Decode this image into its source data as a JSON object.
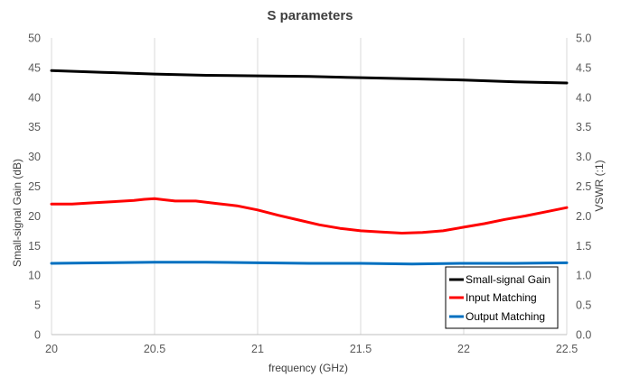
{
  "chart_data": {
    "type": "line",
    "title": "S parameters",
    "xlabel": "frequency  (GHz)",
    "ylabel": "Small-signal Gain (dB)",
    "y2label": "VSWR (:1)",
    "xlim": [
      20,
      22.5
    ],
    "ylim": [
      0,
      50
    ],
    "y2lim": [
      0,
      5
    ],
    "x_ticks": [
      "20",
      "20.5",
      "21",
      "21.5",
      "22",
      "22.5"
    ],
    "y_ticks": [
      "0",
      "5",
      "10",
      "15",
      "20",
      "25",
      "30",
      "35",
      "40",
      "45",
      "50"
    ],
    "y2_ticks": [
      "0.0",
      "0.5",
      "1.0",
      "1.5",
      "2.0",
      "2.5",
      "3.0",
      "3.5",
      "4.0",
      "4.5",
      "5.0"
    ],
    "grid": "vertical",
    "legend_position": "bottom-right",
    "series": [
      {
        "name": "Small-signal Gain",
        "axis": "left",
        "color": "#000000",
        "x": [
          20.0,
          20.25,
          20.5,
          20.75,
          21.0,
          21.25,
          21.5,
          21.75,
          22.0,
          22.25,
          22.5
        ],
        "values": [
          44.5,
          44.2,
          43.9,
          43.7,
          43.6,
          43.5,
          43.3,
          43.1,
          42.9,
          42.6,
          42.4
        ]
      },
      {
        "name": "Input Matching",
        "axis": "right",
        "color": "#ff0000",
        "x": [
          20.0,
          20.1,
          20.2,
          20.3,
          20.4,
          20.45,
          20.5,
          20.55,
          20.6,
          20.7,
          20.8,
          20.9,
          21.0,
          21.1,
          21.2,
          21.3,
          21.4,
          21.5,
          21.6,
          21.7,
          21.8,
          21.9,
          22.0,
          22.1,
          22.2,
          22.3,
          22.4,
          22.5
        ],
        "values": [
          2.2,
          2.2,
          2.22,
          2.24,
          2.26,
          2.28,
          2.29,
          2.27,
          2.25,
          2.25,
          2.21,
          2.17,
          2.1,
          2.01,
          1.93,
          1.85,
          1.79,
          1.75,
          1.73,
          1.71,
          1.72,
          1.75,
          1.81,
          1.87,
          1.94,
          2.0,
          2.07,
          2.14
        ]
      },
      {
        "name": "Output Matching",
        "axis": "right",
        "color": "#0070c0",
        "x": [
          20.0,
          20.25,
          20.5,
          20.75,
          21.0,
          21.25,
          21.5,
          21.75,
          22.0,
          22.25,
          22.5
        ],
        "values": [
          1.2,
          1.21,
          1.22,
          1.22,
          1.21,
          1.2,
          1.2,
          1.19,
          1.2,
          1.2,
          1.21
        ]
      }
    ]
  }
}
